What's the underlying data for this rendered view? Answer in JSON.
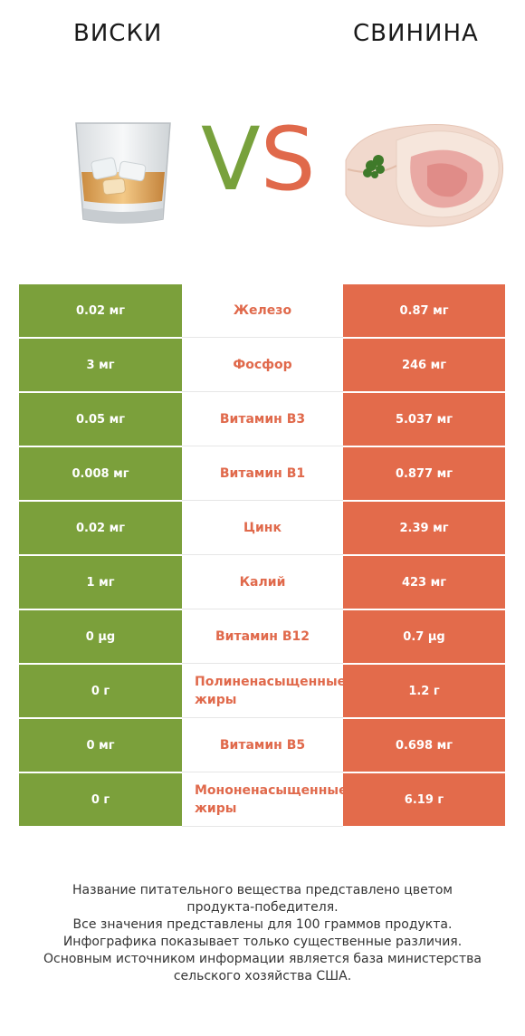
{
  "header": {
    "left_title": "ВИСКИ",
    "right_title": "СВИНИНА",
    "vs_v": "V",
    "vs_s": "S"
  },
  "colors": {
    "left_product": "#7ba03b",
    "right_product": "#e36b4b",
    "nutrient_text": "#e0694b"
  },
  "rows": [
    {
      "left": "0.02 мг",
      "nutrient": "Железо",
      "right": "0.87 мг"
    },
    {
      "left": "3 мг",
      "nutrient": "Фосфор",
      "right": "246 мг"
    },
    {
      "left": "0.05 мг",
      "nutrient": "Витамин B3",
      "right": "5.037 мг"
    },
    {
      "left": "0.008 мг",
      "nutrient": "Витамин B1",
      "right": "0.877 мг"
    },
    {
      "left": "0.02 мг",
      "nutrient": "Цинк",
      "right": "2.39 мг"
    },
    {
      "left": "1 мг",
      "nutrient": "Калий",
      "right": "423 мг"
    },
    {
      "left": "0 µg",
      "nutrient": "Витамин B12",
      "right": "0.7 µg"
    },
    {
      "left": "0 г",
      "nutrient": "Полиненасыщенные жиры",
      "right": "1.2 г"
    },
    {
      "left": "0 мг",
      "nutrient": "Витамин B5",
      "right": "0.698 мг"
    },
    {
      "left": "0 г",
      "nutrient": "Мононенасыщенные жиры",
      "right": "6.19 г"
    }
  ],
  "footer": {
    "line1": "Название питательного вещества представлено цветом",
    "line2": "продукта-победителя.",
    "line3": "Все значения представлены для 100 граммов продукта.",
    "line4": "Инфографика показывает только существенные различия.",
    "line5": "Основным источником информации является база министерства",
    "line6": "сельского хозяйства США."
  }
}
